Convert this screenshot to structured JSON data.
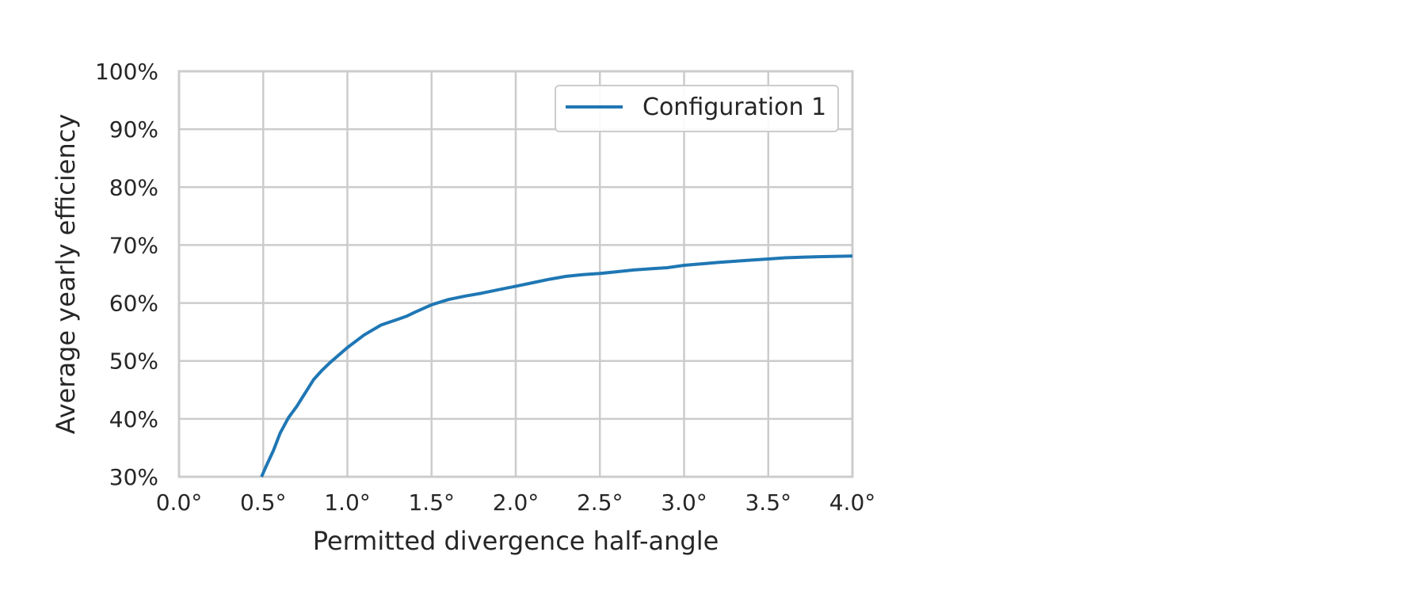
{
  "chart_data": {
    "type": "line",
    "xlabel": "Permitted divergence half-angle",
    "ylabel": "Average yearly efficiency",
    "xlim": [
      0.0,
      4.0
    ],
    "ylim": [
      30,
      100
    ],
    "x_ticks": [
      0.0,
      0.5,
      1.0,
      1.5,
      2.0,
      2.5,
      3.0,
      3.5,
      4.0
    ],
    "x_tick_labels": [
      "0.0°",
      "0.5°",
      "1.0°",
      "1.5°",
      "2.0°",
      "2.5°",
      "3.0°",
      "3.5°",
      "4.0°"
    ],
    "y_ticks": [
      30,
      40,
      50,
      60,
      70,
      80,
      90,
      100
    ],
    "y_tick_labels": [
      "30%",
      "40%",
      "50%",
      "60%",
      "70%",
      "80%",
      "90%",
      "100%"
    ],
    "grid": true,
    "legend": {
      "placement": "upper-right",
      "entries": [
        "Configuration 1"
      ]
    },
    "series": [
      {
        "name": "Configuration 1",
        "color": "#1f77b4",
        "x": [
          0.49,
          0.52,
          0.56,
          0.6,
          0.65,
          0.7,
          0.75,
          0.8,
          0.85,
          0.9,
          1.0,
          1.1,
          1.2,
          1.3,
          1.35,
          1.4,
          1.5,
          1.6,
          1.7,
          1.8,
          1.9,
          2.0,
          2.1,
          2.2,
          2.3,
          2.4,
          2.5,
          2.6,
          2.7,
          2.8,
          2.9,
          3.0,
          3.2,
          3.4,
          3.5,
          3.6,
          3.7,
          3.8,
          4.0
        ],
        "y": [
          30.0,
          32.0,
          34.5,
          37.5,
          40.2,
          42.2,
          44.5,
          46.8,
          48.4,
          49.8,
          52.3,
          54.5,
          56.2,
          57.2,
          57.7,
          58.4,
          59.7,
          60.6,
          61.2,
          61.7,
          62.3,
          62.9,
          63.5,
          64.1,
          64.6,
          64.9,
          65.1,
          65.4,
          65.7,
          65.9,
          66.1,
          66.5,
          67.0,
          67.4,
          67.6,
          67.8,
          67.9,
          68.0,
          68.1
        ]
      }
    ]
  }
}
